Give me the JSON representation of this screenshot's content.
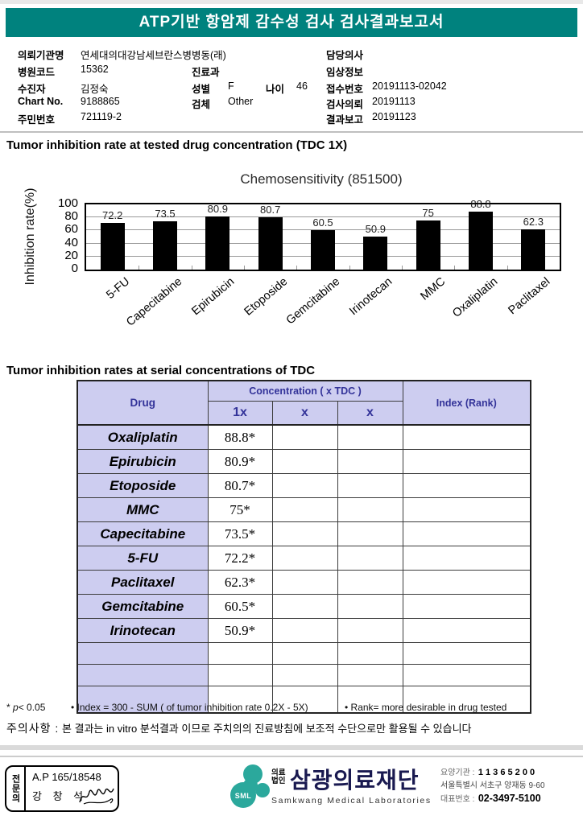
{
  "report_title": "ATP기반 항암제 감수성 검사 검사결과보고서",
  "info": {
    "col1": [
      {
        "label": "의뢰기관명",
        "value": "연세대의대강남세브란스병병동(래)"
      },
      {
        "label": "병원코드",
        "value": "15362"
      },
      {
        "label": "수진자",
        "value": "김정숙"
      },
      {
        "label": "Chart No.",
        "value": "9188865"
      },
      {
        "label": "주민번호",
        "value": "721119-2"
      }
    ],
    "col2": [
      {
        "label": "진료과",
        "value": ""
      },
      {
        "label": "성별",
        "value": "F",
        "label2": "나이",
        "value2": "46"
      },
      {
        "label": "검체",
        "value": "Other"
      }
    ],
    "col3": [
      {
        "label": "담당의사",
        "value": ""
      },
      {
        "label": "임상정보",
        "value": ""
      },
      {
        "label": "접수번호",
        "value": "20191113-02042"
      },
      {
        "label": "검사의뢰",
        "value": "20191113"
      },
      {
        "label": "결과보고",
        "value": "20191123"
      }
    ]
  },
  "section1_title": "Tumor inhibition rate at tested drug concentration (TDC 1X)",
  "chart_data": {
    "type": "bar",
    "title": "Chemosensitivity (851500)",
    "categories": [
      "5-FU",
      "Capecitabine",
      "Epirubicin",
      "Etoposide",
      "Gemcitabine",
      "Irinotecan",
      "MMC",
      "Oxaliplatin",
      "Paclitaxel"
    ],
    "values": [
      72.2,
      73.5,
      80.9,
      80.7,
      60.5,
      50.9,
      75,
      88.8,
      62.3
    ],
    "xlabel": "",
    "ylabel": "Inhibition rate(%)",
    "ylim": [
      0,
      100
    ],
    "yticks": [
      0,
      20,
      40,
      60,
      80,
      100
    ],
    "grid": true,
    "bar_color": "#000000",
    "legend": false
  },
  "section2_title": "Tumor inhibition rates at serial concentrations of TDC",
  "table": {
    "header": {
      "drug": "Drug",
      "concentration": "Concentration ( x TDC )",
      "sub_columns": [
        "1x",
        "x",
        "x"
      ],
      "index": "Index (Rank)"
    },
    "rows": [
      {
        "drug": "Oxaliplatin",
        "c1x": "88.8*",
        "cx1": "",
        "cx2": "",
        "index": ""
      },
      {
        "drug": "Epirubicin",
        "c1x": "80.9*",
        "cx1": "",
        "cx2": "",
        "index": ""
      },
      {
        "drug": "Etoposide",
        "c1x": "80.7*",
        "cx1": "",
        "cx2": "",
        "index": ""
      },
      {
        "drug": "MMC",
        "c1x": "75*",
        "cx1": "",
        "cx2": "",
        "index": ""
      },
      {
        "drug": "Capecitabine",
        "c1x": "73.5*",
        "cx1": "",
        "cx2": "",
        "index": ""
      },
      {
        "drug": "5-FU",
        "c1x": "72.2*",
        "cx1": "",
        "cx2": "",
        "index": ""
      },
      {
        "drug": "Paclitaxel",
        "c1x": "62.3*",
        "cx1": "",
        "cx2": "",
        "index": ""
      },
      {
        "drug": "Gemcitabine",
        "c1x": "60.5*",
        "cx1": "",
        "cx2": "",
        "index": ""
      },
      {
        "drug": "Irinotecan",
        "c1x": "50.9*",
        "cx1": "",
        "cx2": "",
        "index": ""
      }
    ],
    "empty_row_count": 3
  },
  "notes": {
    "significance_star": "* ",
    "significance_p": "p",
    "significance_rest": "< 0.05",
    "index_def": "• Index = 300 - SUM ( of tumor inhibition rate 0.2X  -  5X)",
    "rank_def": "• Rank= more desirable in drug tested"
  },
  "caution": {
    "label": "주의사항 :",
    "text": "본 결과는 in vitro 분석결과 이므로 주치의의 진료방침에 보조적 수단으로만 활용될 수 있습니다"
  },
  "footer": {
    "stamp": {
      "vertical_label": "전문의",
      "license": "A.P 165/18548",
      "doctor_name": "강 창 석"
    },
    "logo": {
      "acronym": "SML",
      "org_type": "의료법인",
      "org_name": "삼광의료재단",
      "org_name_en": "Samkwang Medical Laboratories",
      "color": "#2ba89c"
    },
    "contact": {
      "care_org_label": "요양기관 :",
      "care_org_number": "1 1 3 6 5 2 0 0",
      "address": "서울특별시 서초구 양재동 9-60",
      "phone_label": "대표번호 :",
      "phone": "02-3497-5100"
    }
  }
}
